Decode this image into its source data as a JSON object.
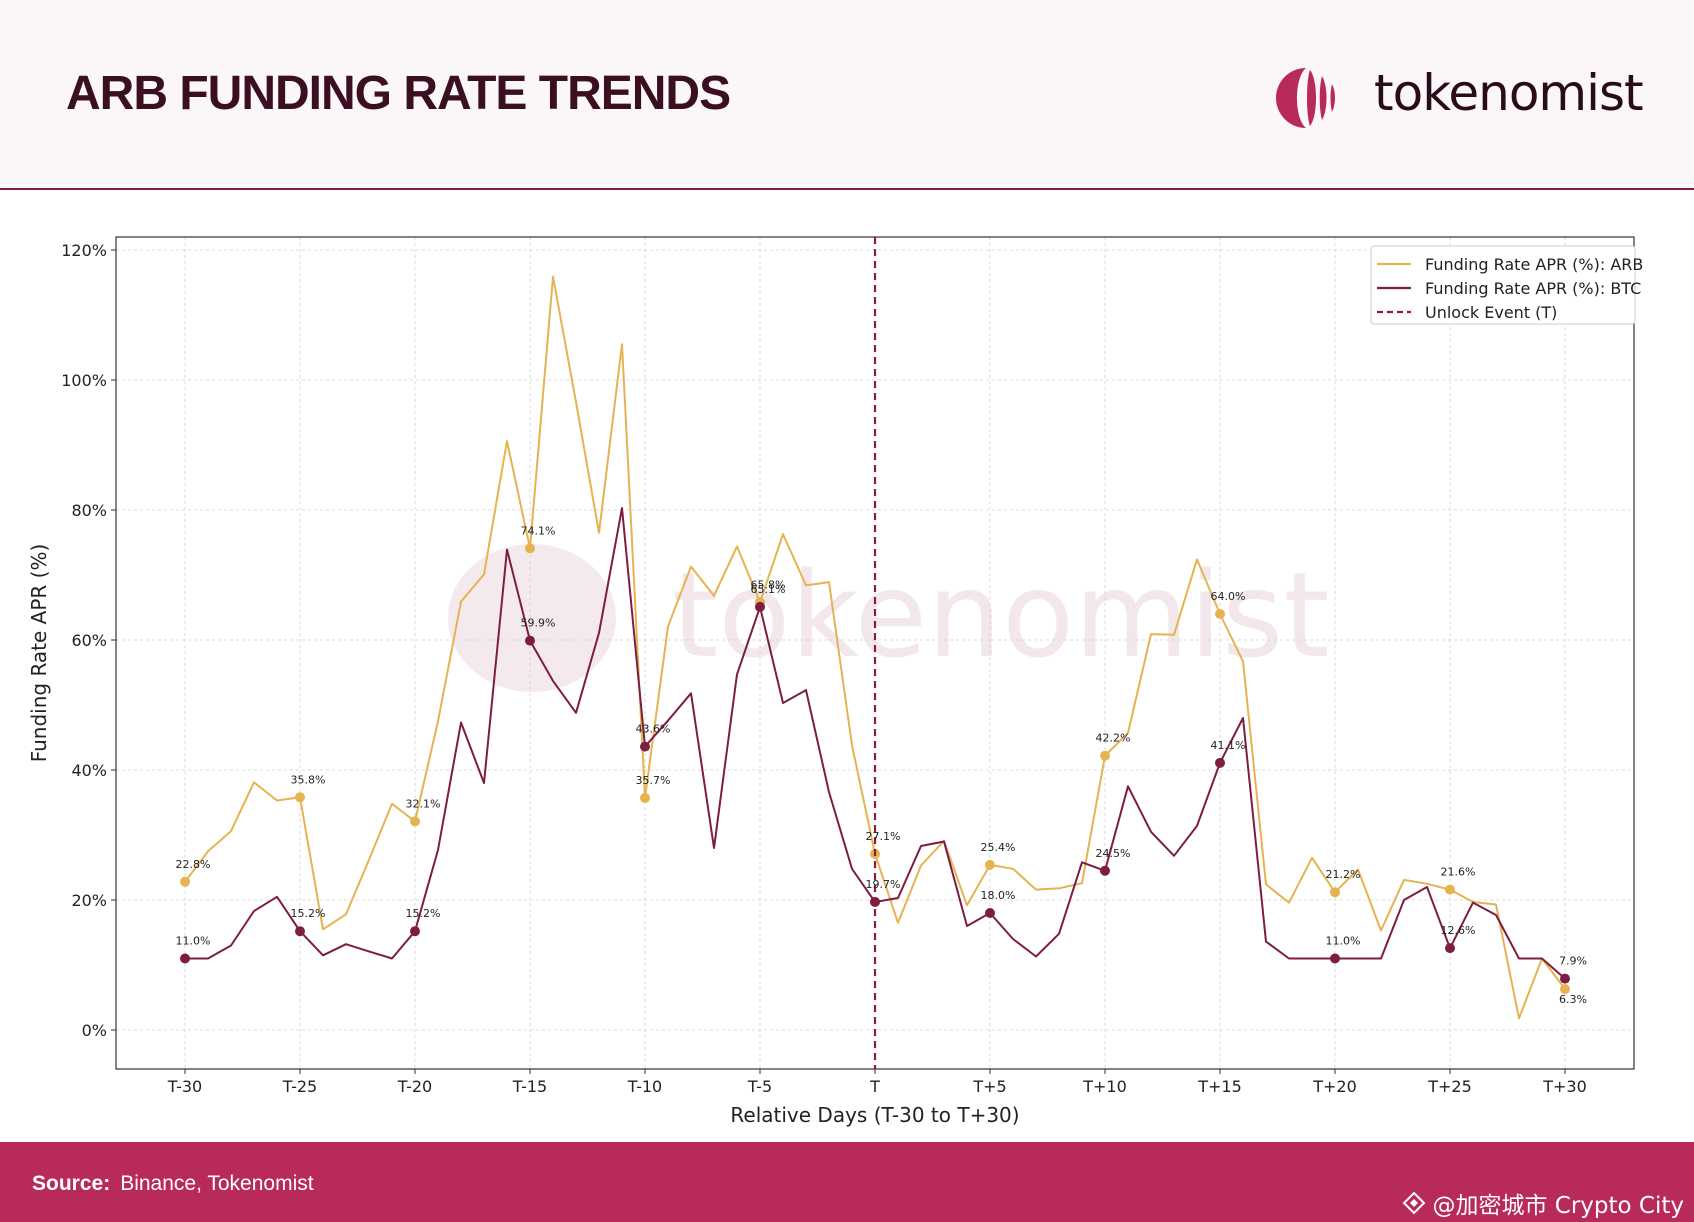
{
  "header": {
    "title": "ARB FUNDING RATE TRENDS",
    "brand_name": "tokenomist",
    "brand_color": "#b82a57"
  },
  "watermark": {
    "text": "tokenomist"
  },
  "footer": {
    "source_label": "Source:",
    "source_value": "Binance, Tokenomist",
    "credit": "@加密城市 Crypto City"
  },
  "colors": {
    "arb": "#e6b351",
    "btc": "#7d1d44",
    "unlock": "#8e1b3c",
    "footer": "#b82a57"
  },
  "chart_data": {
    "type": "line",
    "xlabel": "Relative Days (T-30 to T+30)",
    "ylabel": "Funding Rate APR (%)",
    "xlim": [
      -33,
      33
    ],
    "ylim": [
      -6,
      122
    ],
    "yticks": [
      0,
      20,
      40,
      60,
      80,
      100,
      120
    ],
    "ytick_labels": [
      "0%",
      "20%",
      "40%",
      "60%",
      "80%",
      "100%",
      "120%"
    ],
    "xticks": [
      -30,
      -25,
      -20,
      -15,
      -10,
      -5,
      0,
      5,
      10,
      15,
      20,
      25,
      30
    ],
    "xtick_labels": [
      "T-30",
      "T-25",
      "T-20",
      "T-15",
      "T-10",
      "T-5",
      "T",
      "T+5",
      "T+10",
      "T+15",
      "T+20",
      "T+25",
      "T+30"
    ],
    "grid": true,
    "legend_position": "top-right",
    "vline": {
      "x": 0,
      "name": "Unlock Event (T)"
    },
    "x": [
      -30,
      -29,
      -28,
      -27,
      -26,
      -25,
      -24,
      -23,
      -22,
      -21,
      -20,
      -19,
      -18,
      -17,
      -16,
      -15,
      -14,
      -13,
      -12,
      -11,
      -10,
      -9,
      -8,
      -7,
      -6,
      -5,
      -4,
      -3,
      -2,
      -1,
      0,
      1,
      2,
      3,
      4,
      5,
      6,
      7,
      8,
      9,
      10,
      11,
      12,
      13,
      14,
      15,
      16,
      17,
      18,
      19,
      20,
      21,
      22,
      23,
      24,
      25,
      26,
      27,
      28,
      29,
      30
    ],
    "series": [
      {
        "name": "Funding Rate APR (%): ARB",
        "values": [
          22.8,
          27.5,
          30.6,
          38.1,
          35.3,
          35.8,
          15.5,
          17.8,
          26.2,
          34.8,
          32.1,
          47.5,
          65.9,
          70.1,
          90.6,
          74.1,
          115.9,
          96.6,
          76.5,
          105.5,
          35.7,
          62.1,
          71.3,
          66.8,
          74.4,
          65.8,
          76.3,
          68.4,
          68.9,
          43.8,
          27.1,
          16.5,
          25.3,
          29.1,
          19.2,
          25.4,
          24.8,
          21.6,
          21.8,
          22.6,
          42.2,
          45.7,
          60.9,
          60.8,
          72.4,
          64.0,
          56.7,
          22.4,
          19.6,
          26.5,
          21.2,
          24.7,
          15.3,
          23.1,
          22.5,
          21.6,
          19.7,
          19.3,
          1.8,
          11.0,
          6.3
        ],
        "labels": {
          "-30": "22.8%",
          "-25": "35.8%",
          "-20": "32.1%",
          "-15": "74.1%",
          "-10": "35.7%",
          "-5": "65.8%",
          "0": "27.1%",
          "5": "25.4%",
          "10": "42.2%",
          "15": "64.0%",
          "20": "21.2%",
          "25": "21.6%",
          "30": "6.3%"
        }
      },
      {
        "name": "Funding Rate APR (%): BTC",
        "values": [
          11.0,
          11.0,
          13.0,
          18.3,
          20.5,
          15.2,
          11.5,
          13.2,
          12.1,
          11.0,
          15.2,
          27.7,
          47.3,
          38.0,
          73.9,
          59.9,
          53.7,
          48.8,
          61.1,
          80.3,
          43.6,
          47.6,
          51.8,
          28.0,
          54.7,
          65.1,
          50.3,
          52.3,
          36.6,
          24.8,
          19.7,
          20.3,
          28.3,
          29.0,
          16.0,
          18.0,
          14.0,
          11.3,
          14.8,
          25.8,
          24.5,
          37.5,
          30.5,
          26.8,
          31.4,
          41.1,
          48.0,
          13.6,
          11.0,
          11.0,
          11.0,
          11.0,
          11.0,
          20.0,
          22.0,
          12.6,
          19.6,
          17.7,
          11.0,
          11.0,
          7.9
        ],
        "labels": {
          "-30": "11.0%",
          "-25": "15.2%",
          "-20": "15.2%",
          "-15": "59.9%",
          "-10": "43.6%",
          "-5": "65.1%",
          "0": "19.7%",
          "5": "18.0%",
          "10": "24.5%",
          "15": "41.1%",
          "20": "11.0%",
          "25": "12.6%",
          "30": "7.9%"
        }
      }
    ]
  }
}
